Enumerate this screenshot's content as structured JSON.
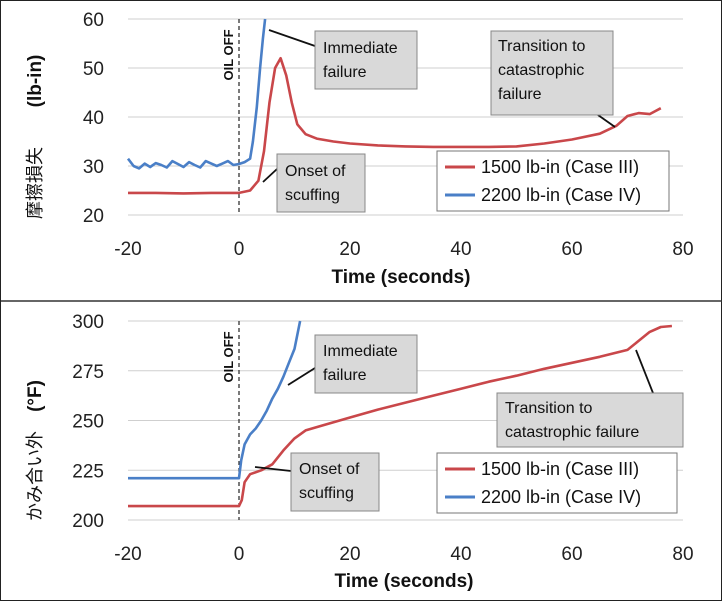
{
  "colors": {
    "case3": "#c9474a",
    "case4": "#4a7fc7",
    "grid": "#cfcfcf",
    "annoFill": "#d9d9d9"
  },
  "oil_off_label": "OIL OFF",
  "chart_data": [
    {
      "type": "line",
      "title": "",
      "xlabel": "Time (seconds)",
      "ylabel": "(lb-in)",
      "ylabel_cjk": "摩擦損失",
      "xlim": [
        -20,
        80
      ],
      "ylim": [
        20,
        60
      ],
      "xticks": [
        -20,
        0,
        20,
        40,
        60,
        80
      ],
      "yticks": [
        20,
        30,
        40,
        50,
        60
      ],
      "grid": "horizontal",
      "legend": "bottom-right",
      "oil_off_x": 0,
      "series": [
        {
          "name": "1500 lb-in (Case III)",
          "color": "case3",
          "x": [
            -20,
            -15,
            -10,
            -5,
            -2,
            0,
            2,
            3.5,
            4.5,
            5.5,
            6.5,
            7.5,
            8.5,
            9.5,
            10.5,
            12,
            14,
            17,
            20,
            25,
            30,
            35,
            40,
            45,
            50,
            55,
            60,
            65,
            68,
            70,
            72,
            74,
            75,
            76
          ],
          "y": [
            24.5,
            24.5,
            24.4,
            24.5,
            24.5,
            24.5,
            25,
            27,
            33,
            43,
            50,
            52,
            48.5,
            43,
            38.5,
            36.5,
            35.6,
            35,
            34.6,
            34.2,
            34.0,
            33.9,
            33.9,
            33.9,
            34,
            34.6,
            35.4,
            36.6,
            38.2,
            40.2,
            40.8,
            40.6,
            41.2,
            41.8
          ]
        },
        {
          "name": "2200 lb-in (Case IV)",
          "color": "case4",
          "x": [
            -20,
            -19,
            -18,
            -17,
            -16,
            -15,
            -14,
            -13,
            -12,
            -11,
            -10,
            -9,
            -8,
            -7,
            -6,
            -5,
            -4,
            -3,
            -2,
            -1,
            0,
            1,
            2,
            2.5,
            3.2,
            3.8,
            4.3,
            4.7
          ],
          "y": [
            31.5,
            30,
            29.5,
            30.5,
            29.8,
            30.6,
            30.2,
            29.7,
            31,
            30.4,
            29.8,
            30.8,
            30.2,
            29.7,
            31,
            30.5,
            30,
            30.5,
            31,
            30.2,
            30.4,
            30.8,
            31.5,
            35,
            42,
            50,
            56,
            60
          ]
        }
      ],
      "annotations": [
        {
          "text": [
            "Immediate",
            "failure"
          ]
        },
        {
          "text": [
            "Onset of",
            "scuffing"
          ]
        },
        {
          "text": [
            "Transition to",
            "catastrophic",
            "failure"
          ]
        }
      ]
    },
    {
      "type": "line",
      "title": "",
      "xlabel": "Time (seconds)",
      "ylabel": "(°F)",
      "ylabel_cjk": "かみ合い外",
      "xlim": [
        -20,
        80
      ],
      "ylim": [
        200,
        300
      ],
      "xticks": [
        -20,
        0,
        20,
        40,
        60,
        80
      ],
      "yticks": [
        200,
        225,
        250,
        275,
        300
      ],
      "grid": "horizontal",
      "legend": "bottom-right",
      "oil_off_x": 0,
      "series": [
        {
          "name": "1500 lb-in (Case III)",
          "color": "case3",
          "x": [
            -20,
            -10,
            -2,
            0,
            0.5,
            1,
            2,
            4,
            6,
            8,
            10,
            12,
            15,
            20,
            25,
            30,
            35,
            40,
            45,
            50,
            55,
            60,
            65,
            70,
            72,
            74,
            76,
            78
          ],
          "y": [
            207,
            207,
            207,
            207,
            210,
            219,
            223,
            225,
            228,
            235,
            241,
            245,
            247.5,
            251.5,
            255.5,
            259,
            262.5,
            266,
            269.5,
            272.5,
            276,
            279,
            282,
            285.5,
            290,
            294.5,
            297,
            297.5
          ]
        },
        {
          "name": "2200 lb-in (Case IV)",
          "color": "case4",
          "x": [
            -20,
            -10,
            -2,
            0,
            0.4,
            1,
            2,
            3,
            4,
            5,
            6,
            7,
            8,
            9,
            10,
            11
          ],
          "y": [
            221,
            221,
            221,
            221,
            230,
            238,
            243,
            246,
            250,
            255,
            261,
            266,
            272,
            279,
            286,
            300
          ]
        }
      ],
      "annotations": [
        {
          "text": [
            "Immediate",
            "failure"
          ]
        },
        {
          "text": [
            "Onset of",
            "scuffing"
          ]
        },
        {
          "text": [
            "Transition to",
            "catastrophic failure"
          ]
        }
      ]
    }
  ]
}
